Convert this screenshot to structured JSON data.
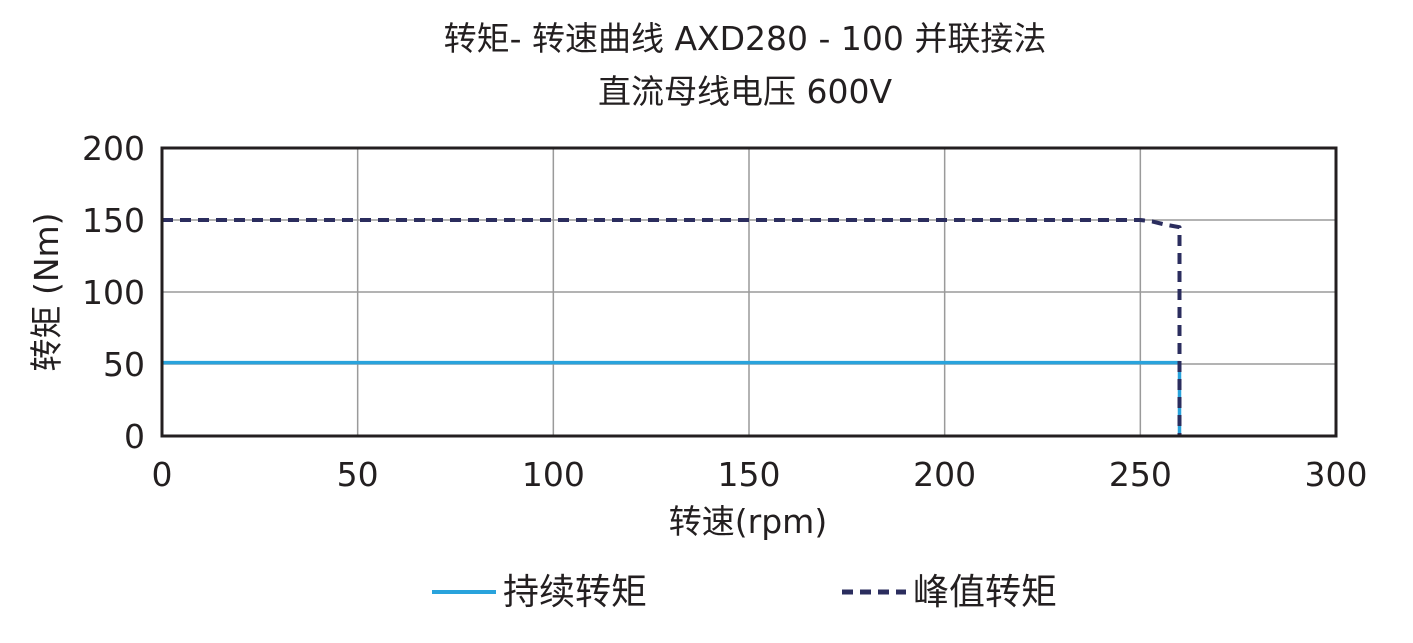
{
  "chart_data": {
    "type": "line",
    "title": "转矩- 转速曲线 AXD280 - 100 并联接法",
    "subtitle": "直流母线电压 600V",
    "xlabel": "转速(rpm)",
    "ylabel": "转矩 (Nm)",
    "xlim": [
      0,
      300
    ],
    "ylim": [
      0,
      200
    ],
    "xticks": [
      "0",
      "50",
      "100",
      "150",
      "200",
      "250",
      "300"
    ],
    "yticks": [
      "0",
      "50",
      "100",
      "150",
      "200"
    ],
    "grid": true,
    "legend_position": "bottom",
    "series": [
      {
        "name": "持续转矩",
        "style": "solid",
        "color": "#29a3dc",
        "x": [
          0,
          250,
          260,
          260
        ],
        "y": [
          51,
          51,
          51,
          0
        ]
      },
      {
        "name": "峰值转矩",
        "style": "dashed",
        "color": "#2b2d5e",
        "x": [
          0,
          250,
          253,
          256,
          260,
          260
        ],
        "y": [
          150,
          150,
          149,
          147,
          145,
          0
        ]
      }
    ]
  }
}
